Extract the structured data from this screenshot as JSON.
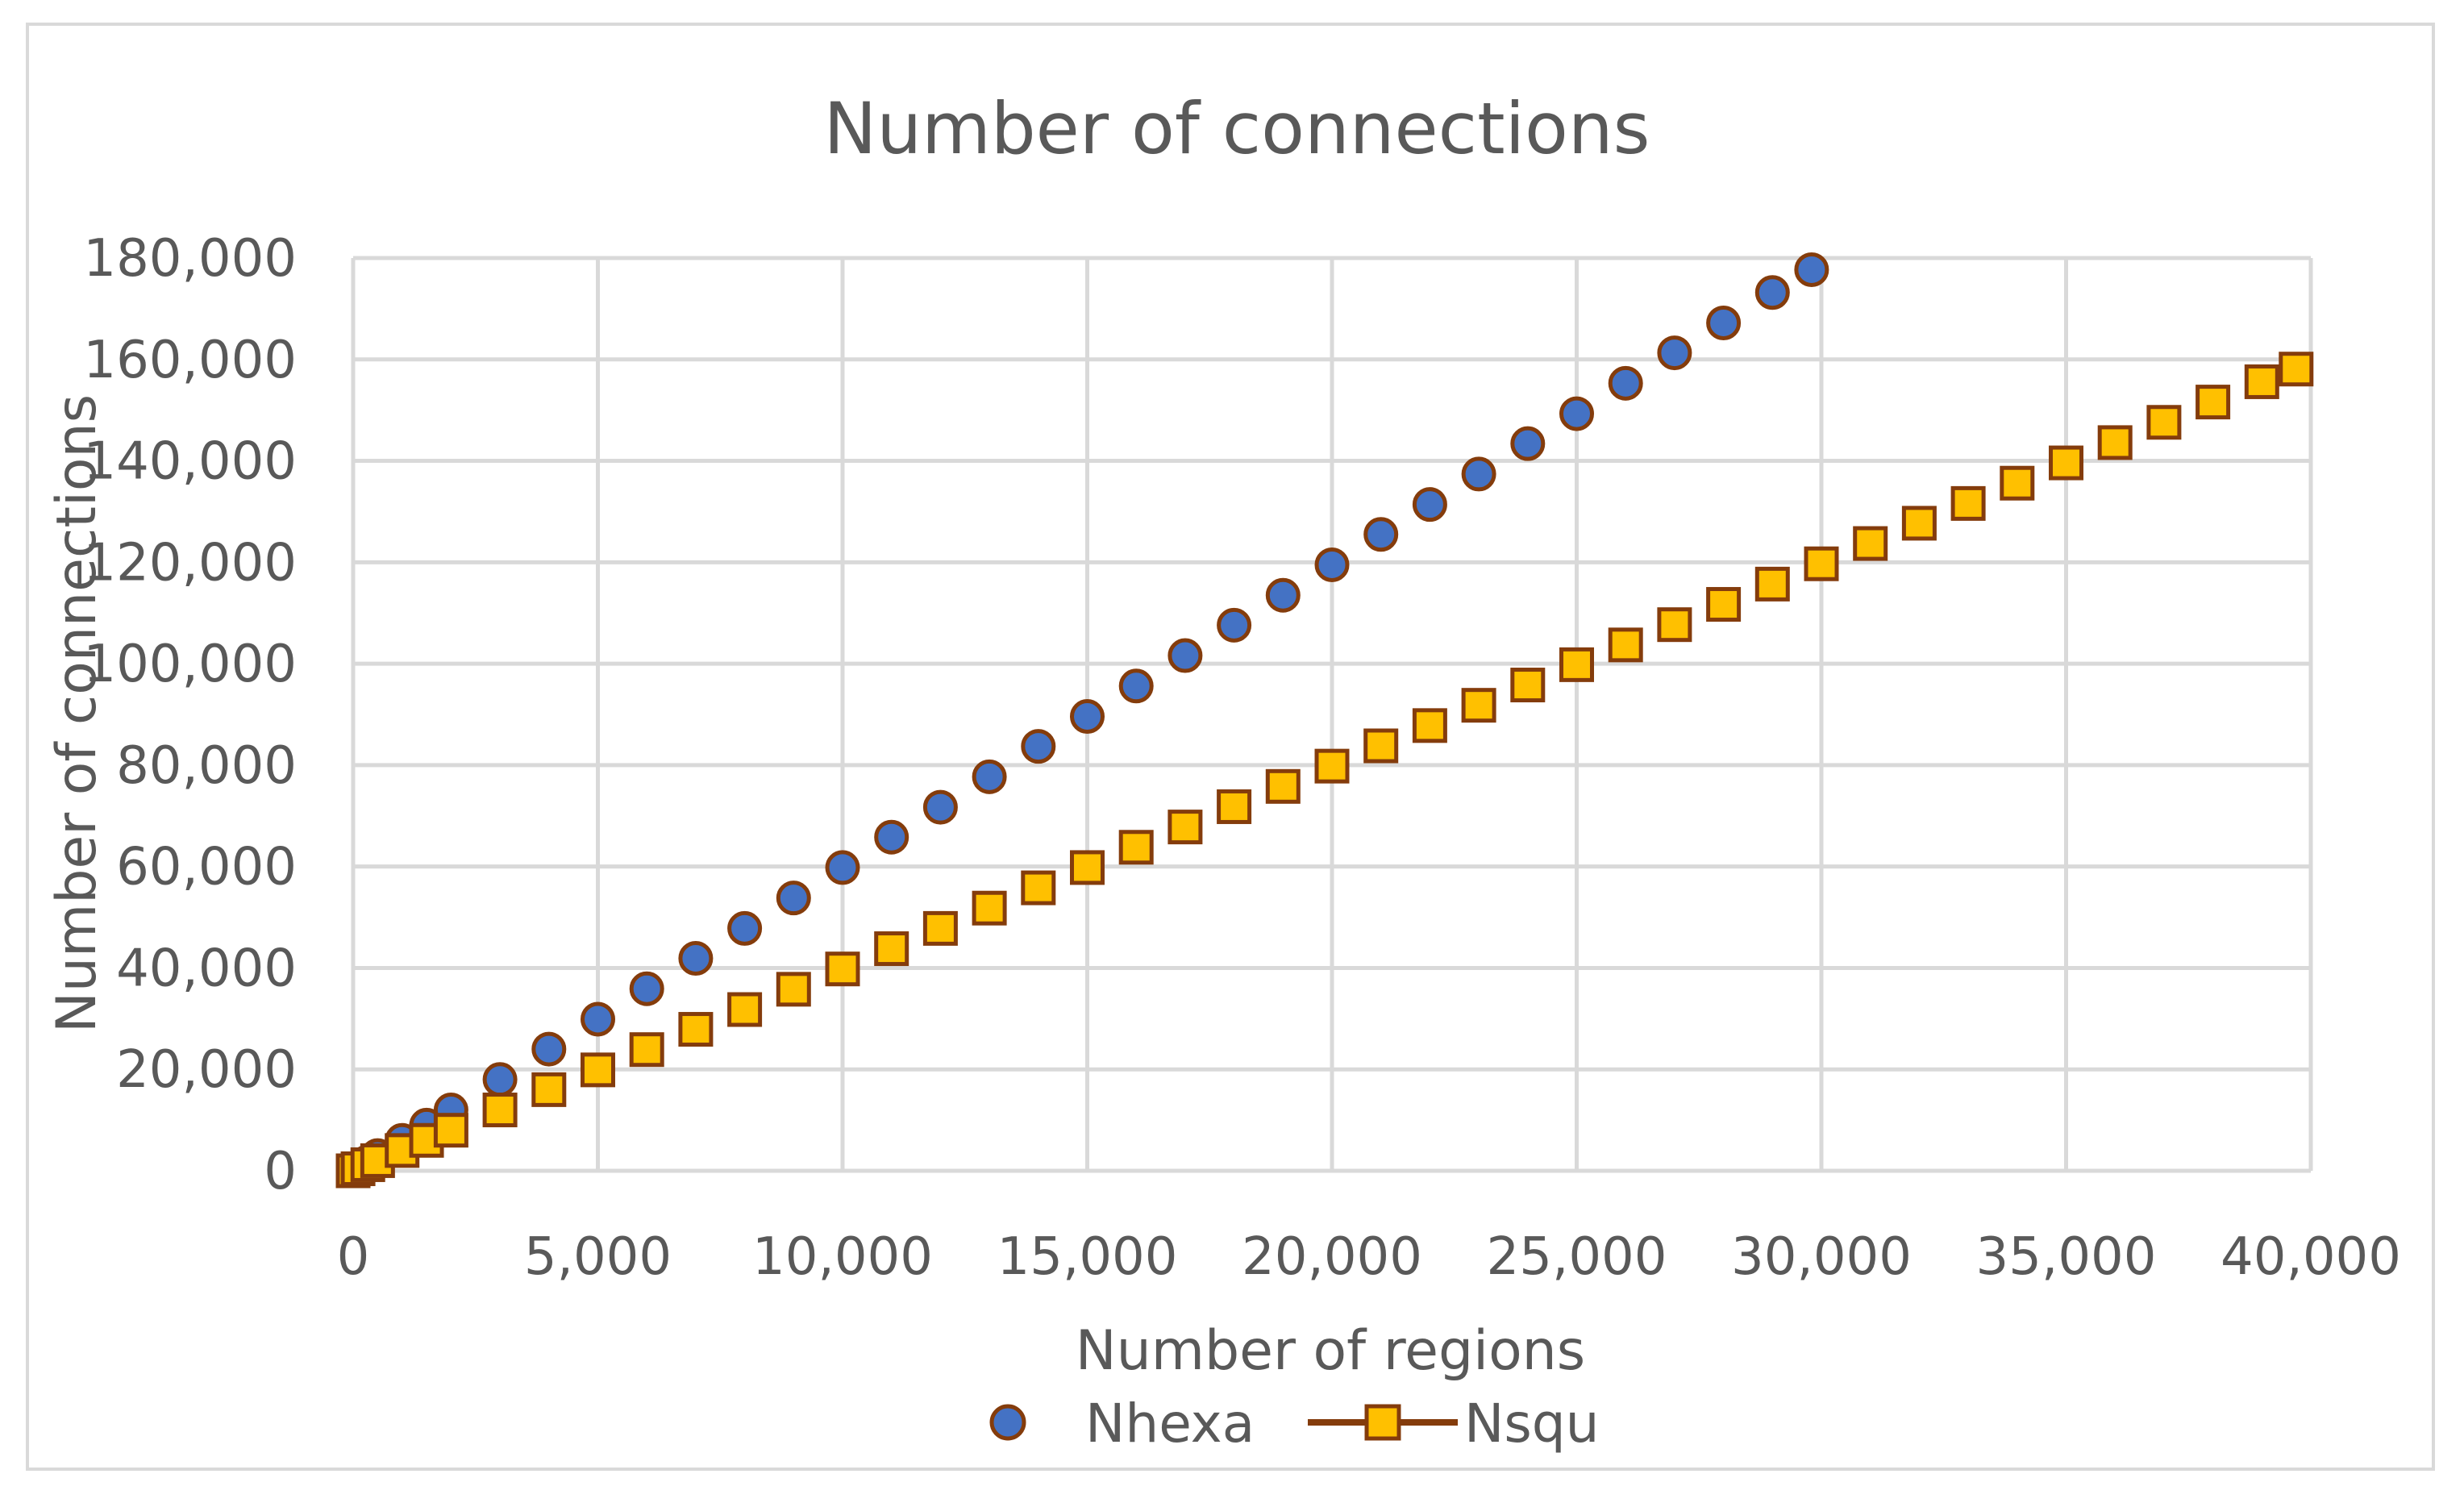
{
  "chart_data": {
    "type": "scatter",
    "title": "Number of connections",
    "xlabel": "Number of regions",
    "ylabel": "Number of connections",
    "xlim": [
      0,
      40000
    ],
    "ylim": [
      0,
      180000
    ],
    "x_ticks": [
      "0",
      "5,000",
      "10,000",
      "15,000",
      "20,000",
      "25,000",
      "30,000",
      "35,000",
      "40,000"
    ],
    "y_ticks": [
      "0",
      "20,000",
      "40,000",
      "60,000",
      "80,000",
      "100,000",
      "120,000",
      "140,000",
      "160,000",
      "180,000"
    ],
    "grid": true,
    "legend_position": "bottom",
    "series": [
      {
        "name": "Nhexa",
        "marker": "circle",
        "fill": "#4472C4",
        "stroke": "#843C0C",
        "x": [
          0,
          100,
          300,
          500,
          1000,
          1500,
          2000,
          3000,
          4000,
          5000,
          6000,
          7000,
          8000,
          9000,
          10000,
          11000,
          12000,
          13000,
          14000,
          15000,
          16000,
          17000,
          18000,
          19000,
          20000,
          21000,
          22000,
          23000,
          24000,
          25000,
          26000,
          27000,
          28000,
          29000,
          29800
        ],
        "y": [
          0,
          600,
          1800,
          3000,
          6000,
          9000,
          12000,
          18000,
          24000,
          29900,
          35900,
          41900,
          47800,
          53800,
          59800,
          65800,
          71700,
          77700,
          83700,
          89600,
          95600,
          101600,
          107600,
          113500,
          119500,
          125500,
          131400,
          137400,
          143400,
          149300,
          155300,
          161300,
          167200,
          173200,
          177700
        ]
      },
      {
        "name": "Nsqu",
        "marker": "square",
        "fill": "#FFC000",
        "stroke": "#843C0C",
        "x": [
          0,
          100,
          300,
          500,
          1000,
          1500,
          2000,
          3000,
          4000,
          5000,
          6000,
          7000,
          8000,
          9000,
          10000,
          11000,
          12000,
          13000,
          14000,
          15000,
          16000,
          17000,
          18000,
          19000,
          20000,
          21000,
          22000,
          23000,
          24000,
          25000,
          26000,
          27000,
          28000,
          29000,
          30000,
          31000,
          32000,
          33000,
          34000,
          35000,
          36000,
          37000,
          38000,
          39000,
          39700
        ],
        "y": [
          0,
          400,
          1200,
          2000,
          4000,
          6000,
          8000,
          12000,
          16000,
          19900,
          23900,
          27900,
          31800,
          35800,
          39800,
          43800,
          47800,
          51800,
          55800,
          59800,
          63800,
          67800,
          71800,
          75800,
          79800,
          83800,
          87800,
          91800,
          95800,
          99800,
          103700,
          107700,
          111700,
          115700,
          119700,
          123700,
          127700,
          131600,
          135600,
          139600,
          143600,
          147600,
          151600,
          155600,
          158100
        ]
      }
    ]
  }
}
